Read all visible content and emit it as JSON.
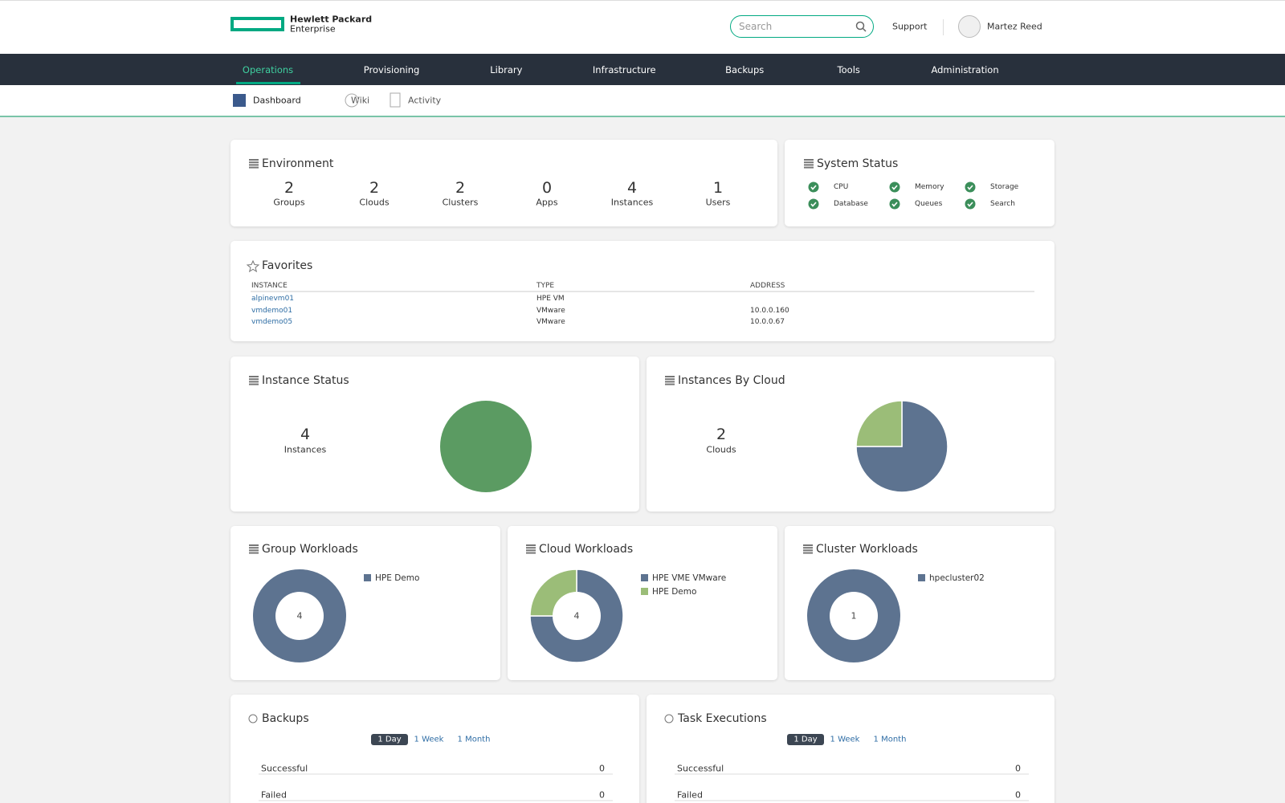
{
  "header": {
    "logo_line1": "Hewlett Packard",
    "logo_line2": "Enterprise",
    "search_placeholder": "Search",
    "support": "Support",
    "user": "Martez Reed"
  },
  "nav": {
    "items": [
      "Operations",
      "Provisioning",
      "Library",
      "Infrastructure",
      "Backups",
      "Tools",
      "Administration"
    ],
    "active": 0
  },
  "subnav": {
    "items": [
      "Dashboard",
      "Wiki",
      "Activity"
    ],
    "active": 0
  },
  "environment": {
    "title": "Environment",
    "stats": [
      {
        "value": 2,
        "label": "Groups"
      },
      {
        "value": 2,
        "label": "Clouds"
      },
      {
        "value": 2,
        "label": "Clusters"
      },
      {
        "value": 0,
        "label": "Apps"
      },
      {
        "value": 4,
        "label": "Instances"
      },
      {
        "value": 1,
        "label": "Users"
      }
    ]
  },
  "system_status": {
    "title": "System Status",
    "items": [
      "CPU",
      "Memory",
      "Storage",
      "Database",
      "Queues",
      "Search"
    ]
  },
  "favorites": {
    "title": "Favorites",
    "columns": [
      "INSTANCE",
      "TYPE",
      "ADDRESS"
    ],
    "rows": [
      {
        "instance": "alpinevm01",
        "type": "HPE VM"
      },
      {
        "instance": "vmdemo01",
        "type": "VMware",
        "address": "10.0.0.160"
      },
      {
        "instance": "vmdemo05",
        "type": "VMware",
        "address": "10.0.0.67"
      }
    ]
  },
  "instance_status": {
    "title": "Instance Status",
    "count": 4,
    "count_label": "Instances",
    "slices": [
      {
        "value": 4,
        "color": "#5b9b62"
      }
    ]
  },
  "instances_by_cloud": {
    "title": "Instances By Cloud",
    "count": 2,
    "count_label": "Clouds",
    "slices": [
      {
        "value": 3,
        "color": "#5d7390"
      },
      {
        "value": 1,
        "color": "#9bbd78"
      }
    ]
  },
  "workloads": [
    {
      "title": "Group Workloads",
      "total": 4,
      "series": [
        {
          "name": "HPE Demo",
          "value": 4,
          "color": "#5d7390"
        }
      ]
    },
    {
      "title": "Cloud Workloads",
      "total": 4,
      "series": [
        {
          "name": "HPE VME VMware",
          "value": 3,
          "color": "#5d7390"
        },
        {
          "name": "HPE Demo",
          "value": 1,
          "color": "#9bbd78"
        }
      ]
    },
    {
      "title": "Cluster Workloads",
      "total": 1,
      "series": [
        {
          "name": "hpecluster02",
          "value": 1,
          "color": "#5d7390"
        }
      ]
    }
  ],
  "backups": {
    "title": "Backups",
    "periods": [
      "1 Day",
      "1 Week",
      "1 Month"
    ],
    "active_period": 0,
    "rows": [
      {
        "label": "Successful",
        "value": 0
      },
      {
        "label": "Failed",
        "value": 0
      }
    ]
  },
  "task_executions": {
    "title": "Task Executions",
    "periods": [
      "1 Day",
      "1 Week",
      "1 Month"
    ],
    "active_period": 0,
    "rows": [
      {
        "label": "Successful",
        "value": 0
      },
      {
        "label": "Failed",
        "value": 0
      }
    ]
  }
}
